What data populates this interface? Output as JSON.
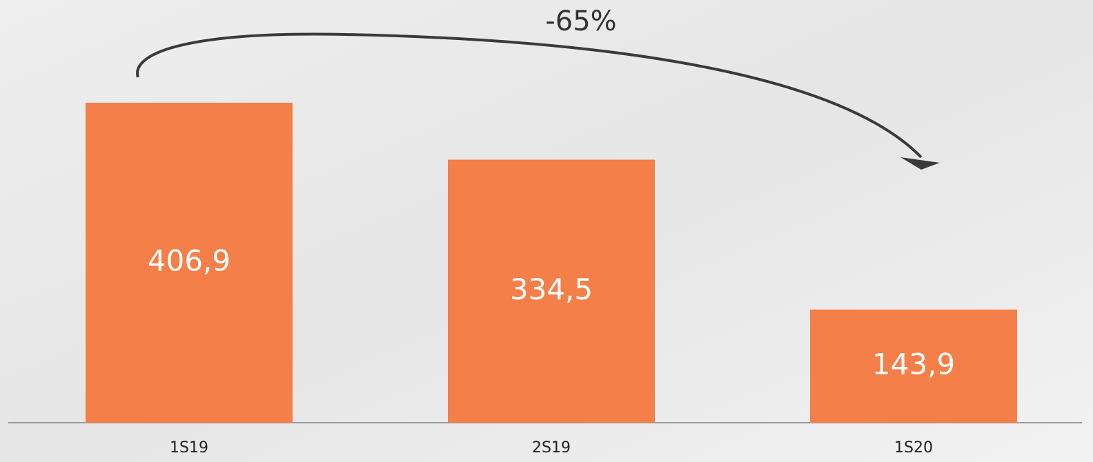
{
  "chart_data": {
    "type": "bar",
    "categories": [
      "1S19",
      "2S19",
      "1S20"
    ],
    "values": [
      406.9,
      334.5,
      143.9
    ],
    "value_labels": [
      "406,9",
      "334,5",
      "143,9"
    ],
    "color": "#f47f48",
    "annotation": "-65%"
  }
}
